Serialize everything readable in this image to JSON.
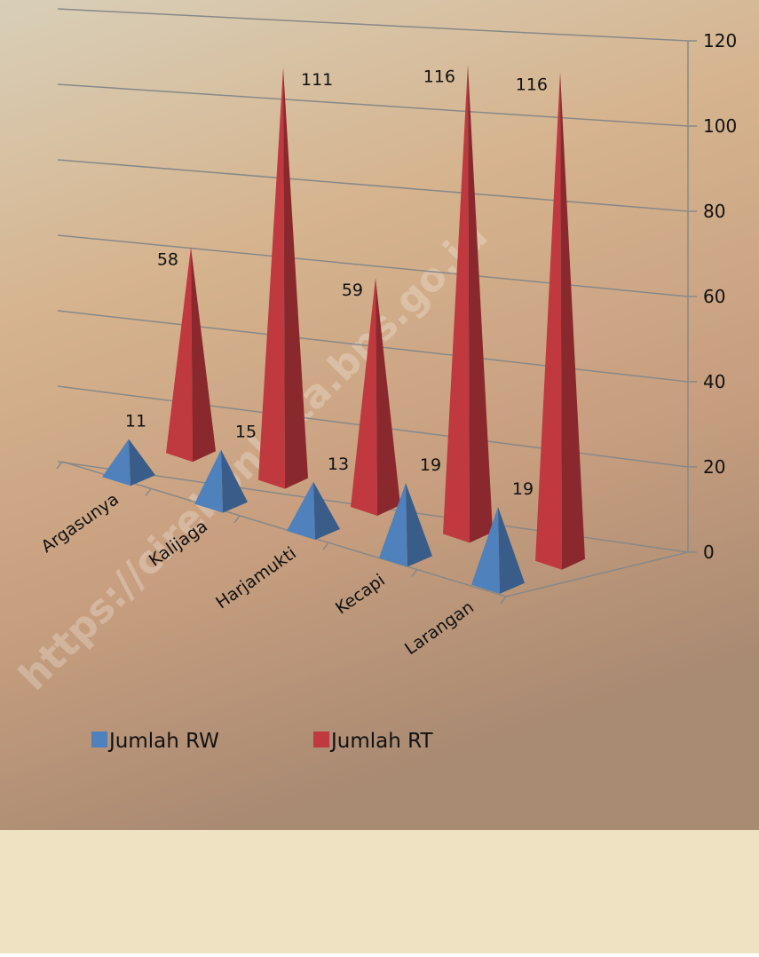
{
  "chart_data": {
    "type": "pyramid",
    "categories": [
      "Argasunya",
      "Kalijaga",
      "Harjamukti",
      "Kecapi",
      "Larangan"
    ],
    "series": [
      {
        "name": "Jumlah RW",
        "color": "#4f81bd",
        "values": [
          11,
          15,
          13,
          19,
          19
        ]
      },
      {
        "name": "Jumlah RT",
        "color": "#c0393f",
        "values": [
          58,
          111,
          59,
          116,
          116
        ]
      }
    ],
    "ylim": [
      0,
      120
    ],
    "yticks": [
      0,
      20,
      40,
      60,
      80,
      100,
      120
    ],
    "grid": true,
    "legend": "bottom",
    "watermark": "https://cirebonkota.bps.go.id"
  }
}
